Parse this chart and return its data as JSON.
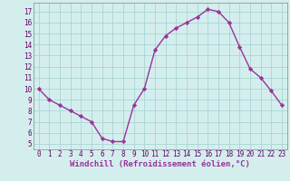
{
  "x": [
    0,
    1,
    2,
    3,
    4,
    5,
    6,
    7,
    8,
    9,
    10,
    11,
    12,
    13,
    14,
    15,
    16,
    17,
    18,
    19,
    20,
    21,
    22,
    23
  ],
  "y": [
    10,
    9,
    8.5,
    8,
    7.5,
    7,
    5.5,
    5.2,
    5.2,
    8.5,
    10,
    13.5,
    14.8,
    15.5,
    16,
    16.5,
    17.2,
    17,
    16,
    13.8,
    11.8,
    11,
    9.8,
    8.5
  ],
  "line_color": "#993399",
  "marker": "D",
  "marker_size": 2.2,
  "linewidth": 1.0,
  "xlabel": "Windchill (Refroidissement éolien,°C)",
  "xlabel_fontsize": 6.5,
  "background_color": "#d4eeee",
  "grid_color": "#aad4d4",
  "xlim": [
    -0.5,
    23.5
  ],
  "ylim": [
    4.5,
    17.8
  ],
  "yticks": [
    5,
    6,
    7,
    8,
    9,
    10,
    11,
    12,
    13,
    14,
    15,
    16,
    17
  ],
  "xticks": [
    0,
    1,
    2,
    3,
    4,
    5,
    6,
    7,
    8,
    9,
    10,
    11,
    12,
    13,
    14,
    15,
    16,
    17,
    18,
    19,
    20,
    21,
    22,
    23
  ],
  "tick_fontsize": 5.5,
  "spine_color": "#888888"
}
